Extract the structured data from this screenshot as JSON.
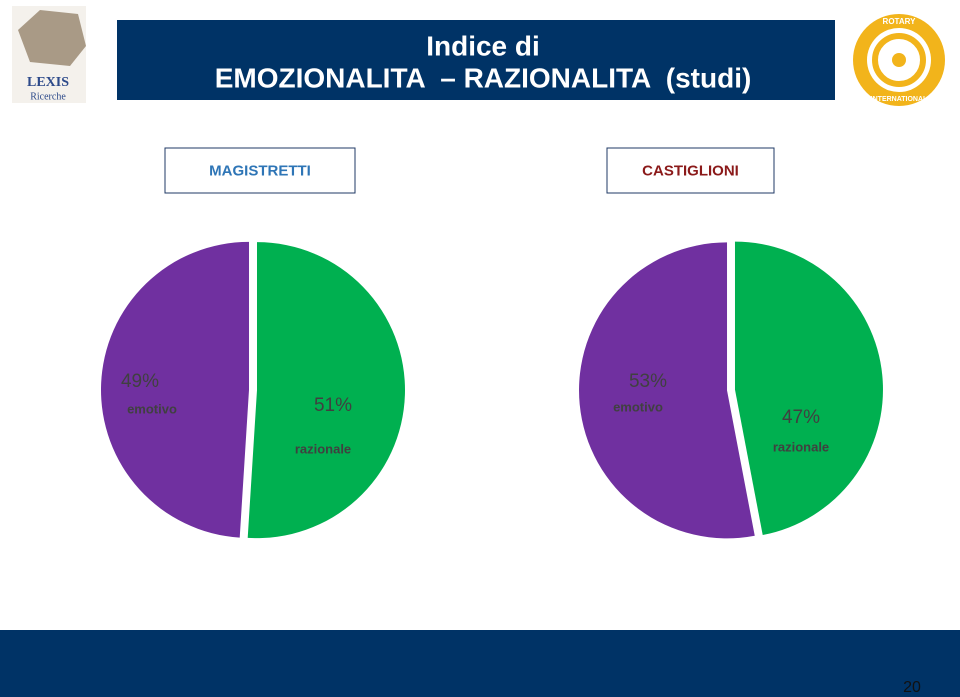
{
  "slide": {
    "title_lines": [
      "Indice di",
      "EMOZIONALITA  – RAZIONALITA  (studi)"
    ],
    "page_number": 20,
    "logo_left": [
      "LEXIS",
      "Ricerche"
    ],
    "logo_right": [
      "ROTARY",
      "INTERNATIONAL"
    ]
  },
  "chart_data": [
    {
      "type": "pie",
      "title": "MAGISTRETTI",
      "categories": [
        "emotivo",
        "razionale"
      ],
      "values": [
        49,
        51
      ],
      "value_labels": [
        "49%",
        "51%"
      ],
      "colors": [
        "#7030a0",
        "#00b050"
      ]
    },
    {
      "type": "pie",
      "title": "CASTIGLIONI",
      "categories": [
        "emotivo",
        "razionale"
      ],
      "values": [
        53,
        47
      ],
      "value_labels": [
        "53%",
        "47%"
      ],
      "colors": [
        "#7030a0",
        "#00b050"
      ]
    }
  ]
}
